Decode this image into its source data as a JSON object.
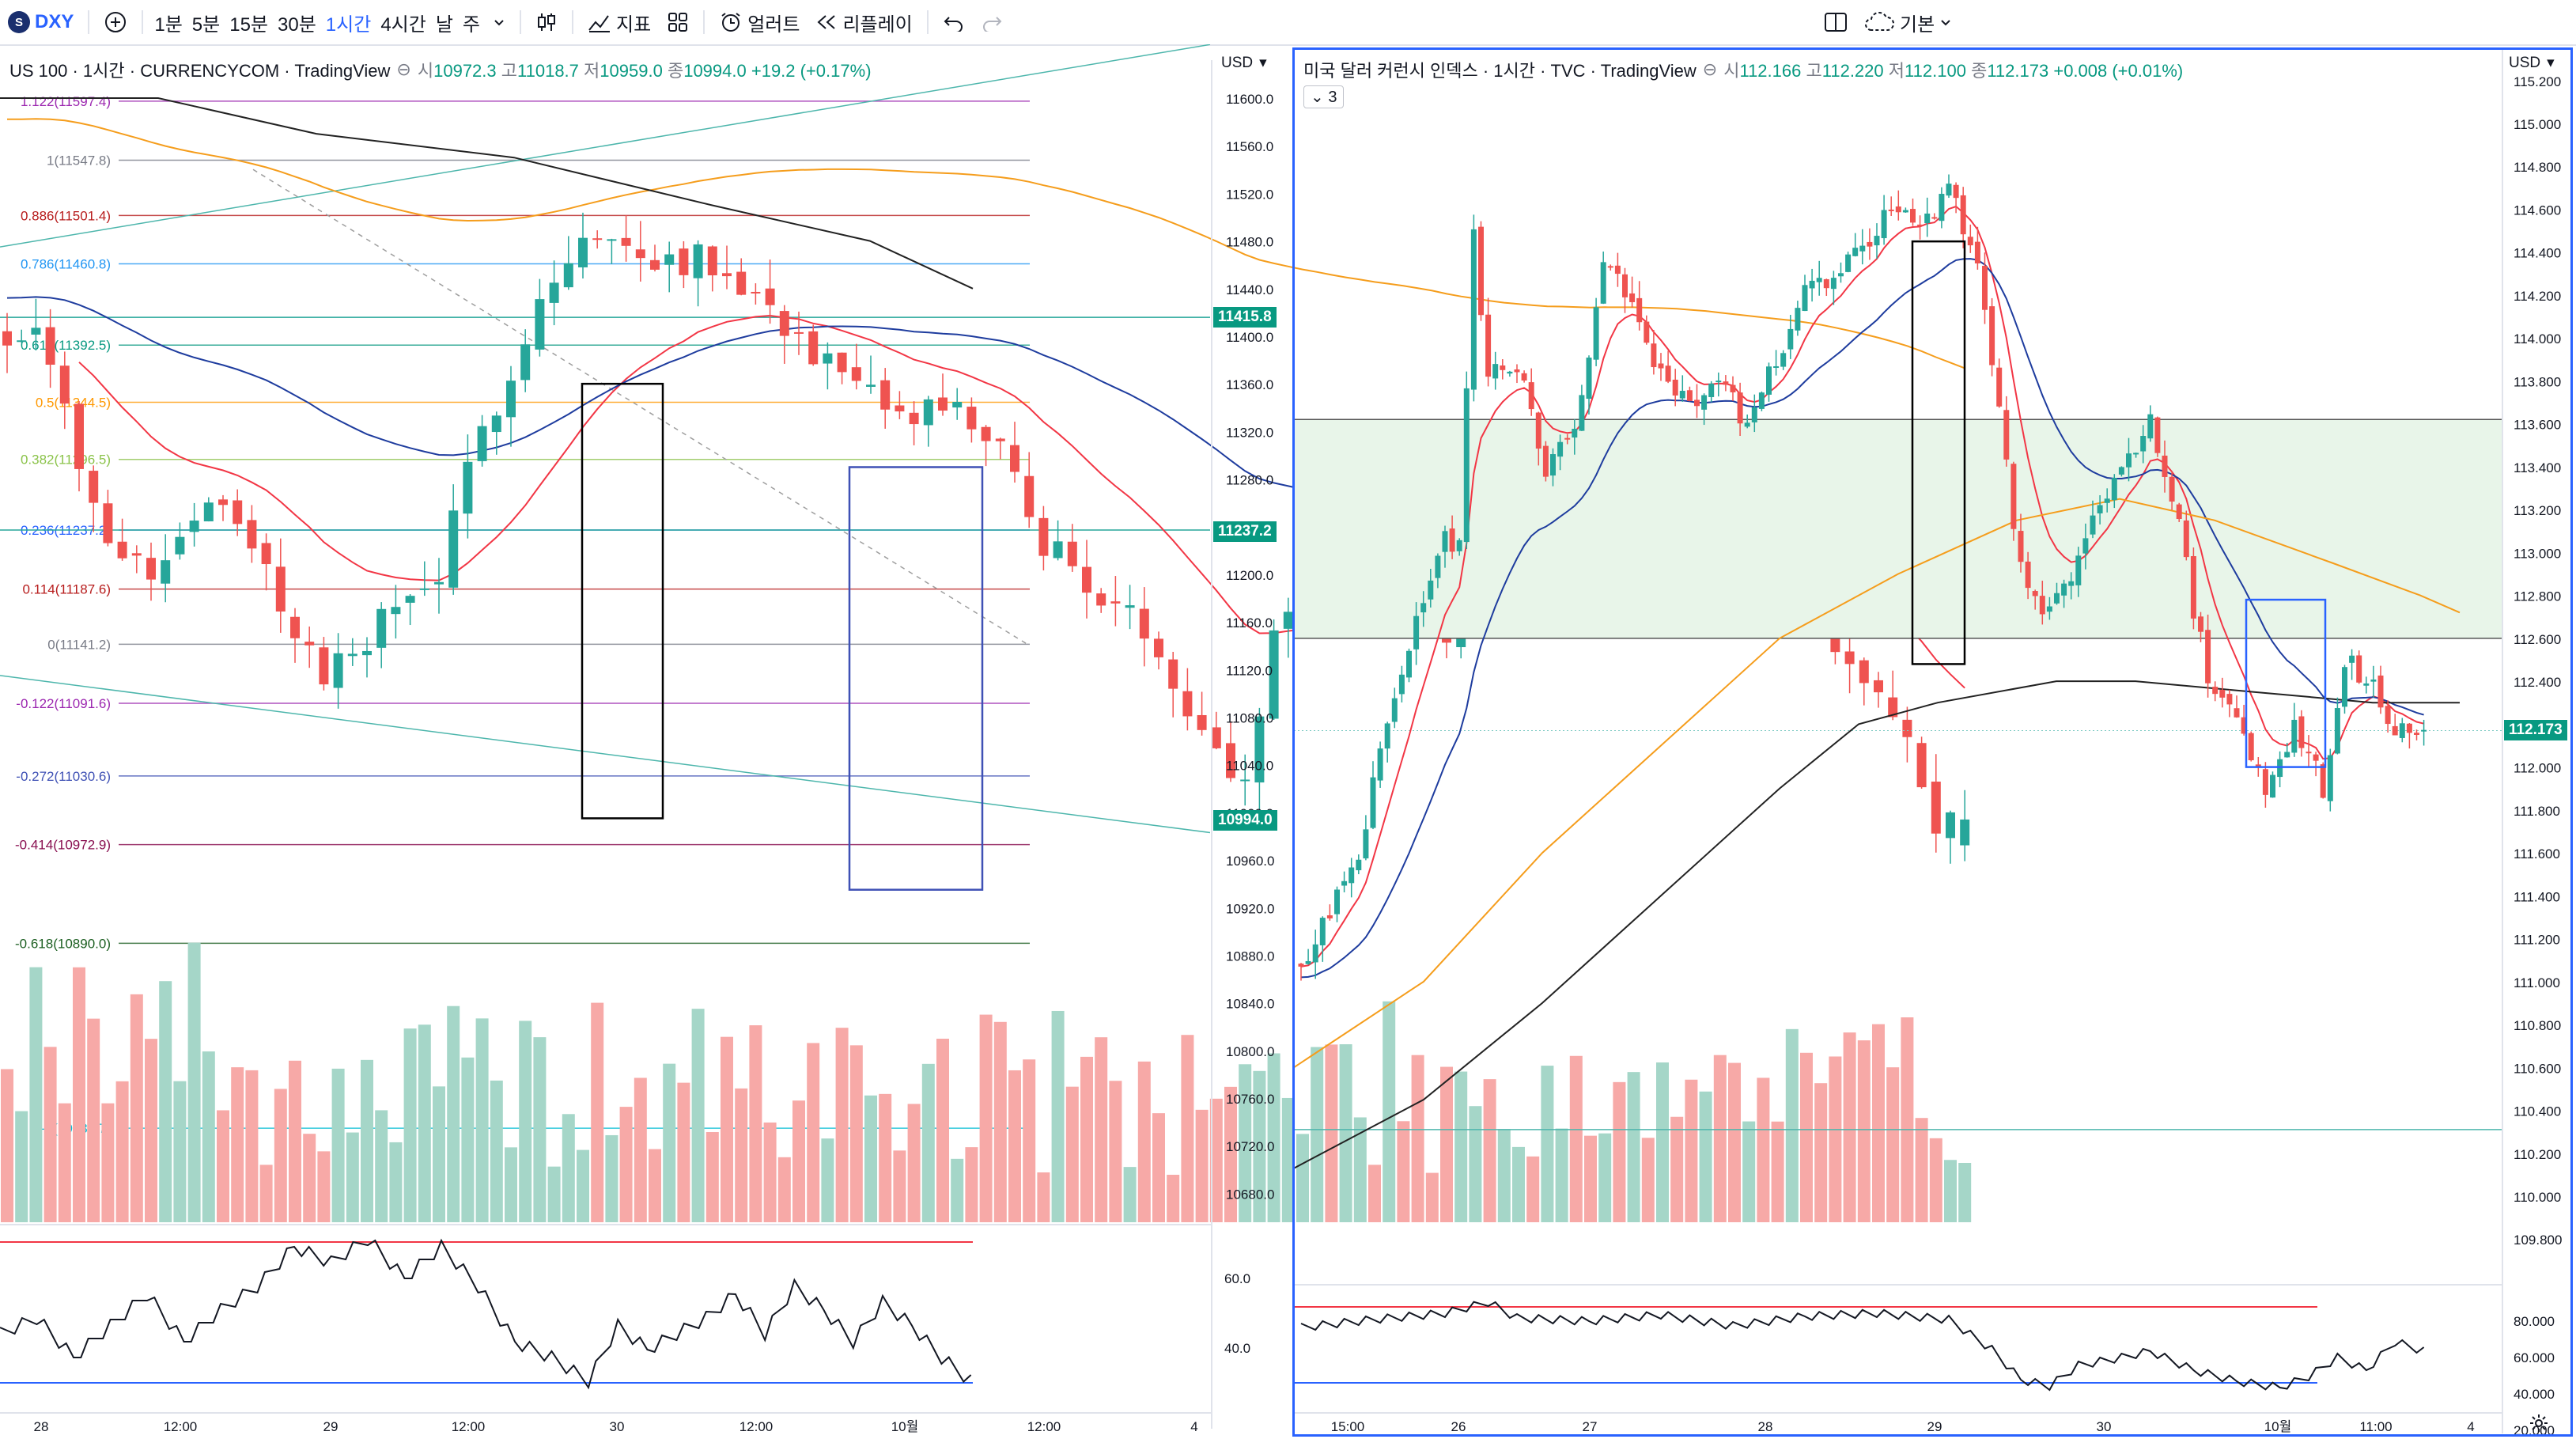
{
  "toolbar": {
    "symbol": "DXY",
    "symbol_badge": "S",
    "add_icon": "plus-circle-icon",
    "timeframes": [
      "1분",
      "5분",
      "15분",
      "30분",
      "1시간",
      "4시간",
      "날",
      "주"
    ],
    "active_timeframe": "1시간",
    "chart_type_icon": "candles-icon",
    "indicators_label": "지표",
    "layouts_icon": "grid-icon",
    "alert_label": "얼러트",
    "replay_label": "리플레이",
    "layout_label": "기본",
    "undo_icon": "undo-icon",
    "redo_icon": "redo-icon"
  },
  "left_chart": {
    "title": "US 100 · 1시간 · CURRENCYCOM · TradingView",
    "ohlc": {
      "o_label": "시",
      "o": "10972.3",
      "h_label": "고",
      "h": "11018.7",
      "l_label": "저",
      "l": "10959.0",
      "c_label": "종",
      "c": "10994.0",
      "change": "+19.2 (+0.17%)"
    },
    "currency": "USD",
    "axis_labels": [
      "11600.0",
      "11560.0",
      "11520.0",
      "11480.0",
      "11440.0",
      "11400.0",
      "11360.0",
      "11320.0",
      "11280.0",
      "11240.0",
      "11200.0",
      "11160.0",
      "11120.0",
      "11080.0",
      "11040.0",
      "11000.0",
      "10960.0",
      "10920.0",
      "10880.0",
      "10840.0",
      "10800.0",
      "10760.0",
      "10720.0",
      "10680.0"
    ],
    "price_tag_1": "11415.8",
    "price_tag_2": "11237.2",
    "price_tag_3": "10994.0",
    "fib_levels": [
      {
        "label": "1.122(11597.4)",
        "price": 11597.4,
        "color": "#9c27b0"
      },
      {
        "label": "1(11547.8)",
        "price": 11547.8,
        "color": "#787b86"
      },
      {
        "label": "0.886(11501.4)",
        "price": 11501.4,
        "color": "#b71c1c"
      },
      {
        "label": "0.786(11460.8)",
        "price": 11460.8,
        "color": "#2196f3"
      },
      {
        "label": "0.618(11392.5)",
        "price": 11392.5,
        "color": "#089981"
      },
      {
        "label": "0.5(11344.5)",
        "price": 11344.5,
        "color": "#ff9800"
      },
      {
        "label": "0.382(11296.5)",
        "price": 11296.5,
        "color": "#8bc34a"
      },
      {
        "label": "0.236(11237.2)",
        "price": 11237.2,
        "color": "#2962ff"
      },
      {
        "label": "0.114(11187.6)",
        "price": 11187.6,
        "color": "#b71c1c"
      },
      {
        "label": "0(11141.2)",
        "price": 11141.2,
        "color": "#787b86"
      },
      {
        "label": "-0.122(11091.6)",
        "price": 11091.6,
        "color": "#9c27b0"
      },
      {
        "label": "-0.272(11030.6)",
        "price": 11030.6,
        "color": "#3f51b5"
      },
      {
        "label": "-0.414(10972.9)",
        "price": 10972.9,
        "color": "#880e4f"
      },
      {
        "label": "-0.618(10890.0)",
        "price": 10890.0,
        "color": "#1b5e20"
      },
      {
        "label": "-1(10734.7)",
        "price": 10734.7,
        "color": "#00bcd4"
      }
    ],
    "rsi_labels": [
      "60.0",
      "40.0"
    ],
    "time_labels": [
      "28",
      "12:00",
      "29",
      "12:00",
      "30",
      "12:00",
      "10월",
      "12:00",
      "4"
    ]
  },
  "right_chart": {
    "title": "미국 달러 커런시 인덱스 · 1시간 · TVC · TradingView",
    "ohlc": {
      "o_label": "시",
      "o": "112.166",
      "h_label": "고",
      "h": "112.220",
      "l_label": "저",
      "l": "112.100",
      "c_label": "종",
      "c": "112.173",
      "change": "+0.008 (+0.01%)"
    },
    "indicator_count": "3",
    "currency": "USD",
    "axis_labels": [
      "115.200",
      "115.000",
      "114.800",
      "114.600",
      "114.400",
      "114.200",
      "114.000",
      "113.800",
      "113.600",
      "113.400",
      "113.200",
      "113.000",
      "112.800",
      "112.600",
      "112.400",
      "112.200",
      "112.000",
      "111.800",
      "111.600",
      "111.400",
      "111.200",
      "111.000",
      "110.800",
      "110.600",
      "110.400",
      "110.200",
      "110.000",
      "109.800"
    ],
    "price_tag": "112.173",
    "rsi_labels": [
      "80.000",
      "60.000",
      "40.000",
      "20.000"
    ],
    "time_labels": [
      "15:00",
      "26",
      "27",
      "28",
      "29",
      "30",
      "10월",
      "11:00",
      "4"
    ],
    "settings_icon": "gear-icon"
  },
  "colors": {
    "up": "#26a69a",
    "down": "#ef5350",
    "up_vol": "#a5d6c8",
    "down_vol": "#f7a9a7",
    "ema_red": "#f23645",
    "ema_blue": "#1e3c9e",
    "ema_orange": "#f59d1c",
    "ema_black": "#222222",
    "accent": "#2962ff",
    "zone": "#e8f5e9"
  }
}
